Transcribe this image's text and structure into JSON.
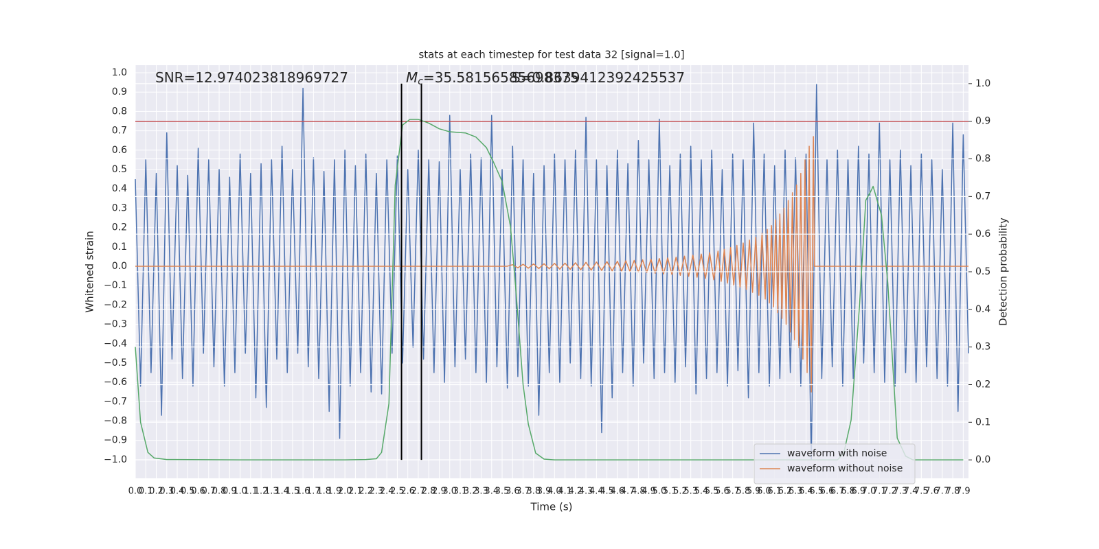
{
  "chart_data": {
    "type": "line",
    "title": "stats at each timestep for test data 32 [signal=1.0]",
    "xlabel": "Time (s)",
    "ylabel": "Whitened strain",
    "y2label": "Detection probability",
    "xlim": [
      0,
      7.95
    ],
    "ylim": [
      -1.096,
      1.039
    ],
    "y2lim": [
      -0.049,
      1.049
    ],
    "grid": true,
    "legend": "lower right",
    "xticks": [
      {
        "value": 0,
        "label": "0.0"
      },
      0.1,
      0.2,
      0.3,
      0.4,
      0.5,
      0.6,
      0.7,
      0.8,
      0.9,
      {
        "value": 1,
        "label": "1.0"
      },
      1.1,
      1.2,
      1.3,
      1.4,
      1.5,
      1.6,
      1.7,
      1.8,
      1.9,
      {
        "value": 2,
        "label": "2.0"
      },
      2.1,
      2.2,
      2.3,
      2.4,
      2.5,
      2.6,
      2.7,
      2.8,
      2.9,
      {
        "value": 3,
        "label": "3.0"
      },
      3.1,
      3.2,
      3.3,
      3.4,
      3.5,
      3.6,
      3.7,
      3.8,
      3.9,
      {
        "value": 4,
        "label": "4.0"
      },
      4.1,
      4.2,
      4.3,
      4.4,
      4.5,
      4.6,
      4.7,
      4.8,
      4.9,
      {
        "value": 5,
        "label": "5.0"
      },
      5.1,
      5.2,
      5.3,
      5.4,
      5.5,
      5.6,
      5.7,
      5.8,
      5.9,
      {
        "value": 6,
        "label": "6.0"
      },
      6.1,
      6.2,
      6.3,
      6.4,
      6.5,
      6.6,
      6.7,
      6.8,
      6.9,
      {
        "value": 7,
        "label": "7.0"
      },
      7.1,
      7.2,
      7.3,
      7.4,
      7.5,
      7.6,
      7.7,
      7.8,
      7.9
    ],
    "yticks": [
      {
        "value": -1,
        "label": "−1.0"
      },
      {
        "value": -0.9,
        "label": "−0.9"
      },
      {
        "value": -0.8,
        "label": "−0.8"
      },
      {
        "value": -0.7,
        "label": "−0.7"
      },
      {
        "value": -0.6,
        "label": "−0.6"
      },
      {
        "value": -0.5,
        "label": "−0.5"
      },
      {
        "value": -0.4,
        "label": "−0.4"
      },
      {
        "value": -0.3,
        "label": "−0.3"
      },
      {
        "value": -0.2,
        "label": "−0.2"
      },
      {
        "value": -0.1,
        "label": "−0.1"
      },
      {
        "value": 0,
        "label": "0.0"
      },
      0.1,
      0.2,
      0.3,
      0.4,
      0.5,
      0.6,
      0.7,
      0.8,
      0.9,
      {
        "value": 1,
        "label": "1.0"
      }
    ],
    "y2ticks": [
      {
        "value": 0,
        "label": "0.0"
      },
      0.1,
      0.2,
      0.3,
      0.4,
      0.5,
      0.6,
      0.7,
      0.8,
      0.9,
      {
        "value": 1,
        "label": "1.0"
      }
    ],
    "series": [
      {
        "name": "waveform with noise",
        "color": "#4c72b0",
        "x": [
          0,
          0.05,
          0.1,
          0.15,
          0.2,
          0.25,
          0.3,
          0.35,
          0.4,
          0.45,
          0.5,
          0.55,
          0.6,
          0.65,
          0.7,
          0.75,
          0.8,
          0.85,
          0.9,
          0.95,
          1.0,
          1.05,
          1.1,
          1.15,
          1.2,
          1.25,
          1.3,
          1.35,
          1.4,
          1.45,
          1.5,
          1.55,
          1.6,
          1.65,
          1.7,
          1.75,
          1.8,
          1.85,
          1.9,
          1.95,
          2.0,
          2.05,
          2.1,
          2.15,
          2.2,
          2.25,
          2.3,
          2.35,
          2.4,
          2.45,
          2.5,
          2.55,
          2.6,
          2.65,
          2.7,
          2.75,
          2.8,
          2.85,
          2.9,
          2.95,
          3.0,
          3.05,
          3.1,
          3.15,
          3.2,
          3.25,
          3.3,
          3.35,
          3.4,
          3.45,
          3.5,
          3.55,
          3.6,
          3.65,
          3.7,
          3.75,
          3.8,
          3.85,
          3.9,
          3.95,
          4.0,
          4.05,
          4.1,
          4.15,
          4.2,
          4.25,
          4.3,
          4.35,
          4.4,
          4.45,
          4.5,
          4.55,
          4.6,
          4.65,
          4.7,
          4.75,
          4.8,
          4.85,
          4.9,
          4.95,
          5.0,
          5.05,
          5.1,
          5.15,
          5.2,
          5.25,
          5.3,
          5.35,
          5.4,
          5.45,
          5.5,
          5.55,
          5.6,
          5.65,
          5.7,
          5.75,
          5.8,
          5.85,
          5.9,
          5.95,
          6.0,
          6.05,
          6.1,
          6.15,
          6.2,
          6.25,
          6.3,
          6.35,
          6.4,
          6.45,
          6.5,
          6.55,
          6.6,
          6.65,
          6.7,
          6.75,
          6.8,
          6.85,
          6.9,
          6.95,
          7.0,
          7.05,
          7.1,
          7.15,
          7.2,
          7.25,
          7.3,
          7.35,
          7.4,
          7.45,
          7.5,
          7.55,
          7.6,
          7.65,
          7.7,
          7.75,
          7.8,
          7.85,
          7.9,
          7.95
        ],
        "values": [
          0.45,
          -0.62,
          0.55,
          -0.55,
          0.48,
          -0.77,
          0.69,
          -0.48,
          0.52,
          -0.58,
          0.47,
          -0.62,
          0.61,
          -0.45,
          0.55,
          -0.52,
          0.5,
          -0.62,
          0.46,
          -0.55,
          0.58,
          -0.45,
          0.48,
          -0.68,
          0.53,
          -0.73,
          0.55,
          -0.48,
          0.62,
          -0.55,
          0.5,
          -0.45,
          0.92,
          -0.52,
          0.56,
          -0.58,
          0.49,
          -0.75,
          0.55,
          -0.89,
          0.6,
          -0.62,
          0.52,
          -0.55,
          0.58,
          -0.65,
          0.48,
          -0.66,
          0.55,
          -0.45,
          0.57,
          -0.5,
          0.5,
          -0.42,
          0.6,
          -0.48,
          0.55,
          -0.55,
          0.54,
          -0.6,
          0.78,
          -0.52,
          0.5,
          -0.48,
          0.58,
          -0.55,
          0.56,
          -0.6,
          0.78,
          -0.52,
          0.5,
          -0.63,
          0.62,
          -0.57,
          0.55,
          -0.62,
          0.48,
          -0.77,
          0.52,
          -0.55,
          0.58,
          -0.6,
          0.55,
          -0.5,
          0.6,
          -0.58,
          0.77,
          -0.62,
          0.55,
          -0.86,
          0.52,
          -0.68,
          0.6,
          -0.55,
          0.53,
          -0.62,
          0.65,
          -0.5,
          0.55,
          -0.58,
          0.76,
          -0.55,
          0.52,
          -0.6,
          0.58,
          -0.52,
          0.62,
          -0.66,
          0.55,
          -0.58,
          0.6,
          -0.55,
          0.5,
          -0.62,
          0.58,
          -0.54,
          0.55,
          -0.68,
          0.74,
          -0.55,
          0.58,
          -0.62,
          0.52,
          -0.58,
          0.6,
          -0.55,
          0.56,
          -0.62,
          0.58,
          -1.0,
          0.94,
          -0.58,
          0.55,
          -0.52,
          0.6,
          -0.62,
          0.55,
          -0.58,
          0.62,
          -0.5,
          0.58,
          -0.55,
          0.74,
          -0.6,
          0.55,
          -0.62,
          0.6,
          -0.55,
          0.52,
          -0.6,
          0.58,
          -0.52,
          0.55,
          -0.58,
          0.5,
          -0.62,
          0.74,
          -0.75,
          0.68,
          -0.45
        ]
      },
      {
        "name": "waveform without noise",
        "color": "#dd8452",
        "x": [
          0,
          3.55,
          3.6,
          3.65,
          3.7,
          3.75,
          3.8,
          3.85,
          3.9,
          3.95,
          4.0,
          4.05,
          4.1,
          4.15,
          4.2,
          4.25,
          4.3,
          4.35,
          4.4,
          4.45,
          4.5,
          4.55,
          4.6,
          4.64,
          4.68,
          4.72,
          4.76,
          4.8,
          4.84,
          4.88,
          4.92,
          4.96,
          5.0,
          5.04,
          5.08,
          5.12,
          5.16,
          5.2,
          5.24,
          5.28,
          5.32,
          5.36,
          5.4,
          5.44,
          5.48,
          5.52,
          5.56,
          5.59,
          5.62,
          5.65,
          5.68,
          5.71,
          5.74,
          5.77,
          5.8,
          5.83,
          5.86,
          5.89,
          5.92,
          5.95,
          5.98,
          6.01,
          6.03,
          6.05,
          6.07,
          6.09,
          6.11,
          6.13,
          6.15,
          6.17,
          6.19,
          6.21,
          6.23,
          6.25,
          6.27,
          6.29,
          6.31,
          6.33,
          6.35,
          6.37,
          6.39,
          6.41,
          6.43,
          6.45,
          6.47,
          6.48,
          7.95
        ],
        "values": [
          0,
          0,
          0.008,
          -0.008,
          0.01,
          -0.01,
          0.012,
          -0.012,
          0.013,
          -0.013,
          0.015,
          -0.015,
          0.016,
          -0.016,
          0.018,
          -0.018,
          0.02,
          -0.02,
          0.022,
          -0.022,
          0.024,
          -0.024,
          0.026,
          -0.026,
          0.028,
          -0.028,
          0.03,
          -0.03,
          0.033,
          -0.033,
          0.036,
          -0.036,
          0.04,
          -0.04,
          0.043,
          -0.043,
          0.047,
          -0.047,
          0.052,
          -0.052,
          0.057,
          -0.057,
          0.063,
          -0.063,
          0.07,
          -0.07,
          0.078,
          -0.078,
          0.087,
          -0.087,
          0.097,
          -0.097,
          0.108,
          -0.108,
          0.12,
          -0.12,
          0.135,
          -0.135,
          0.15,
          -0.15,
          0.17,
          -0.17,
          0.19,
          -0.19,
          0.21,
          -0.21,
          0.24,
          -0.24,
          0.27,
          -0.27,
          0.3,
          -0.3,
          0.34,
          -0.34,
          0.38,
          -0.38,
          0.42,
          -0.42,
          0.48,
          -0.48,
          0.55,
          -0.55,
          0.62,
          -0.65,
          0.67,
          0,
          0
        ]
      },
      {
        "color": "#55a868",
        "axis": "y2",
        "x": [
          0,
          0.05,
          0.12,
          0.18,
          0.3,
          1.0,
          2.0,
          2.2,
          2.3,
          2.35,
          2.42,
          2.48,
          2.55,
          2.62,
          2.7,
          2.8,
          2.9,
          3.0,
          3.15,
          3.25,
          3.35,
          3.42,
          3.5,
          3.58,
          3.63,
          3.7,
          3.75,
          3.82,
          3.9,
          4.0,
          5.0,
          6.0,
          6.7,
          6.76,
          6.83,
          6.91,
          6.97,
          7.02,
          7.04,
          7.12,
          7.18,
          7.27,
          7.35,
          7.42,
          7.9
        ],
        "values": [
          0.3,
          0.1,
          0.02,
          0.005,
          0.001,
          0,
          0,
          0.001,
          0.003,
          0.02,
          0.15,
          0.73,
          0.89,
          0.905,
          0.905,
          0.895,
          0.88,
          0.872,
          0.869,
          0.858,
          0.83,
          0.79,
          0.74,
          0.62,
          0.456,
          0.2,
          0.095,
          0.018,
          0.002,
          0,
          0,
          0,
          0,
          0.018,
          0.106,
          0.41,
          0.69,
          0.715,
          0.727,
          0.65,
          0.47,
          0.058,
          0.01,
          0,
          0
        ]
      }
    ],
    "hline": {
      "value": 0.9,
      "axis": "y2",
      "color": "#c44e52"
    },
    "vlines": {
      "x": [
        2.54,
        2.73
      ],
      "ymin": 0,
      "ymax": 1,
      "axis": "y2",
      "color": "#000000"
    },
    "annotations": [
      {
        "text": "SNR=12.974023818969727"
      },
      {
        "symbol": "M",
        "subscript": "c",
        "text": "=35.58156585698375"
      },
      {
        "text": "S=0.8639412392425537"
      }
    ]
  }
}
